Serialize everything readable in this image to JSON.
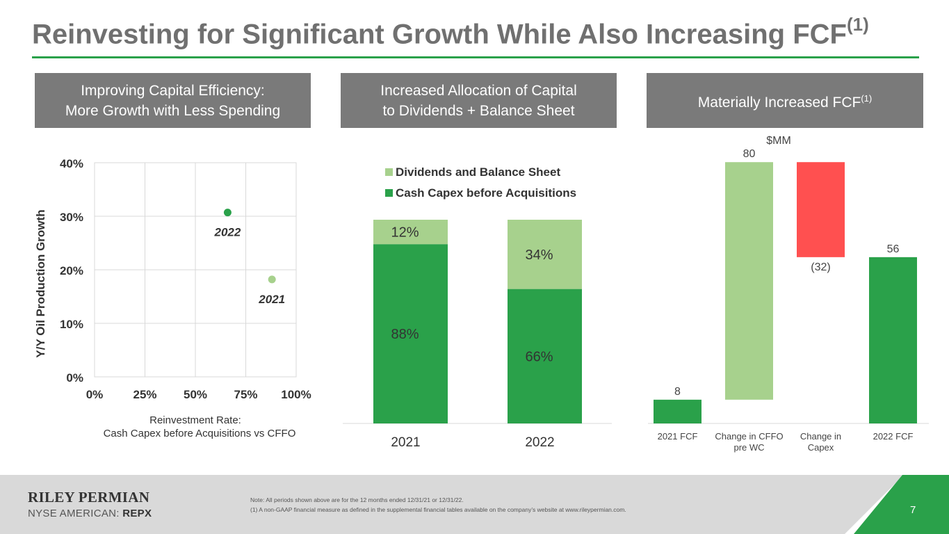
{
  "slide": {
    "title": "Reinvesting for Significant Growth While Also Increasing FCF",
    "title_superscript": "(1)",
    "accent_color": "#2aa14a",
    "header_color": "#7a7a7a"
  },
  "panels": {
    "left": {
      "header_line1": "Improving Capital Efficiency:",
      "header_line2": "More Growth with Less Spending"
    },
    "middle": {
      "header_line1": "Increased Allocation of Capital",
      "header_line2": "to Dividends + Balance Sheet"
    },
    "right": {
      "header": "Materially Increased FCF",
      "header_superscript": "(1)",
      "unit_label": "$MM"
    }
  },
  "chart_data": [
    {
      "type": "scatter",
      "ylabel": "Y/Y Oil Production Growth",
      "xlabel_line1": "Reinvestment Rate:",
      "xlabel_line2": "Cash Capex before Acquisitions vs CFFO",
      "xlim": [
        0,
        100
      ],
      "ylim": [
        0,
        40
      ],
      "x_ticks": [
        0,
        25,
        50,
        75,
        100
      ],
      "x_tick_labels": [
        "0%",
        "25%",
        "50%",
        "75%",
        "100%"
      ],
      "y_ticks": [
        0,
        10,
        20,
        30,
        40
      ],
      "y_tick_labels": [
        "0%",
        "10%",
        "20%",
        "30%",
        "40%"
      ],
      "grid": true,
      "points": [
        {
          "label": "2022",
          "x": 66,
          "y": 30.7,
          "color": "#2aa14a"
        },
        {
          "label": "2021",
          "x": 88,
          "y": 18.2,
          "color": "#a7d18d"
        }
      ]
    },
    {
      "type": "bar",
      "stacked": true,
      "percent": true,
      "categories": [
        "2021",
        "2022"
      ],
      "legend_position": "top",
      "series": [
        {
          "name": "Dividends and Balance Sheet",
          "values": [
            12,
            34
          ],
          "labels": [
            "12%",
            "34%"
          ],
          "color": "#a7d18d"
        },
        {
          "name": "Cash Capex before Acquisitions",
          "values": [
            88,
            66
          ],
          "labels": [
            "88%",
            "66%"
          ],
          "color": "#2aa14a"
        }
      ]
    },
    {
      "type": "bar",
      "subtype": "waterfall",
      "unit": "$MM",
      "categories": [
        "2021 FCF",
        "Change in CFFO pre WC",
        "Change in Capex",
        "2022 FCF"
      ],
      "category_lines": [
        [
          "2021 FCF"
        ],
        [
          "Change in CFFO",
          "pre WC"
        ],
        [
          "Change in",
          "Capex"
        ],
        [
          "2022 FCF"
        ]
      ],
      "values": [
        8,
        80,
        -32,
        56
      ],
      "value_labels": [
        "8",
        "80",
        "(32)",
        "56"
      ],
      "kinds": [
        "total",
        "increase",
        "decrease",
        "total"
      ],
      "colors": {
        "total": "#2aa14a",
        "increase": "#a7d18d",
        "decrease": "#ff5050"
      }
    }
  ],
  "footer": {
    "company": "RILEY PERMIAN",
    "exchange_prefix": "NYSE AMERICAN: ",
    "ticker": "REPX",
    "note_line1": "Note: All periods shown above are for the 12 months ended 12/31/21 or 12/31/22.",
    "note_line2": "(1)   A non-GAAP financial measure as defined in the supplemental financial tables available on the company’s website at www.rileypermian.com.",
    "page_number": "7"
  }
}
